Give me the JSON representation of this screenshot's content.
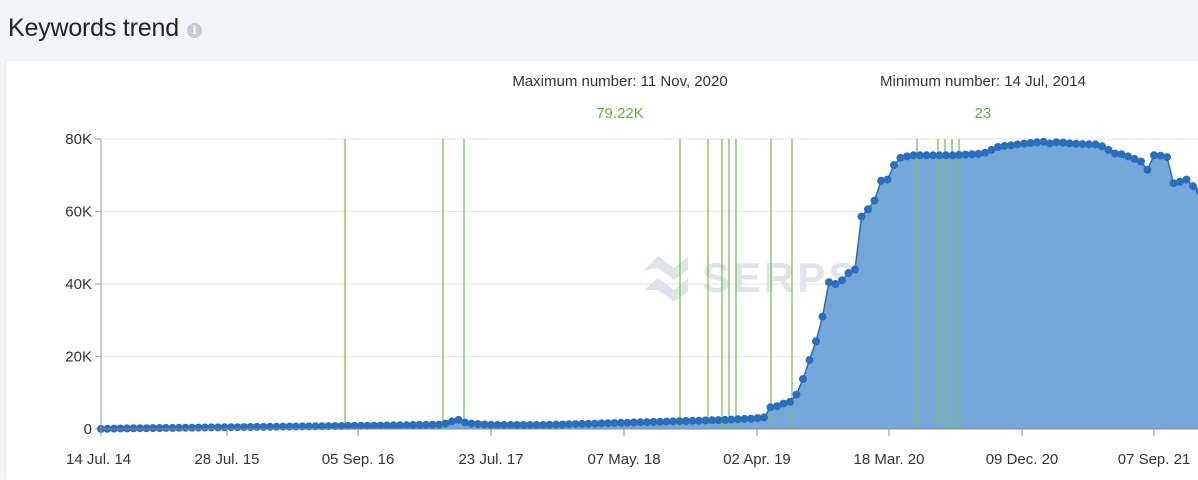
{
  "header": {
    "title": "Keywords trend"
  },
  "annotations": {
    "max_label": "Maximum number: 11 Nov, 2020",
    "max_value": "79.22K",
    "min_label": "Minimum number: 14 Jul, 2014",
    "min_value": "23"
  },
  "watermark": "SERPSTAT",
  "chart_data": {
    "type": "area",
    "title": "Keywords trend",
    "ylim": [
      0,
      80000
    ],
    "y_ticks": [
      0,
      20000,
      40000,
      60000,
      80000
    ],
    "y_tick_labels": [
      "0",
      "20K",
      "40K",
      "60K",
      "80K"
    ],
    "x_tick_labels": [
      "14 Jul. 14",
      "28 Jul. 15",
      "05 Sep. 16",
      "23 Jul. 17",
      "07 May. 18",
      "02 Apr. 19",
      "18 Mar. 20",
      "09 Dec. 20",
      "07 Sep. 21"
    ],
    "grid": true,
    "series": [
      {
        "values": [
          23,
          60,
          100,
          130,
          160,
          190,
          210,
          230,
          250,
          270,
          290,
          310,
          330,
          350,
          370,
          390,
          410,
          430,
          450,
          470,
          490,
          510,
          530,
          550,
          570,
          590,
          610,
          630,
          650,
          670,
          690,
          710,
          730,
          750,
          770,
          790,
          810,
          830,
          850,
          870,
          890,
          910,
          930,
          950,
          970,
          1000,
          1030,
          1060,
          1090,
          1120,
          1150,
          1180,
          1220,
          1500,
          2100,
          2500,
          1800,
          1500,
          1350,
          1250,
          1150,
          1100,
          1100,
          1100,
          1100,
          1100,
          1100,
          1100,
          1100,
          1150,
          1200,
          1250,
          1300,
          1350,
          1400,
          1450,
          1500,
          1550,
          1600,
          1650,
          1700,
          1750,
          1800,
          1850,
          1900,
          1950,
          2000,
          2050,
          2100,
          2150,
          2200,
          2250,
          2300,
          2350,
          2400,
          2450,
          2500,
          2600,
          2700,
          2800,
          2850,
          3000,
          3200,
          6000,
          6300,
          7000,
          7500,
          9500,
          13800,
          19000,
          24200,
          31000,
          40500,
          40000,
          41000,
          43000,
          44000,
          58600,
          60600,
          63000,
          68500,
          68800,
          72800,
          74800,
          75200,
          75500,
          75500,
          75500,
          75500,
          75500,
          75500,
          75500,
          75600,
          75700,
          75800,
          75900,
          76200,
          77000,
          77800,
          78100,
          78300,
          78500,
          78700,
          78900,
          79100,
          79220,
          78800,
          79100,
          79000,
          78800,
          78700,
          78600,
          78500,
          78500,
          78000,
          77000,
          76000,
          75800,
          75200,
          74500,
          73800,
          71500,
          75500,
          75400,
          75000,
          67800,
          68200,
          68800,
          67000,
          65700,
          63700
        ]
      }
    ]
  }
}
